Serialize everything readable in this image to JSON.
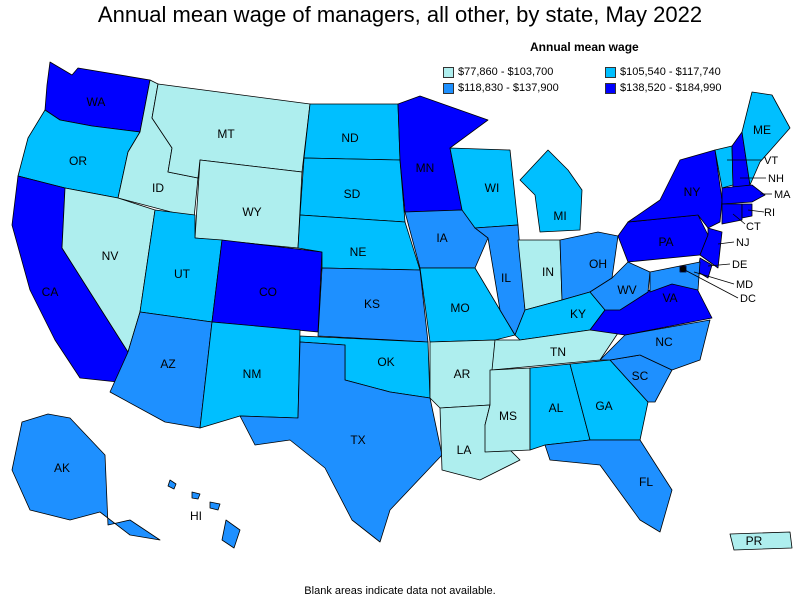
{
  "title": "Annual mean wage of managers, all other, by state, May 2022",
  "legend": {
    "title": "Annual mean wage",
    "items": [
      {
        "label": "$77,860 - $103,700",
        "color": "#aeeeee"
      },
      {
        "label": "$105,540 - $117,740",
        "color": "#00bfff"
      },
      {
        "label": "$118,830 - $137,900",
        "color": "#1e90ff"
      },
      {
        "label": "$138,520 - $184,990",
        "color": "#0000ff"
      }
    ]
  },
  "footnote": "Blank areas indicate data not available.",
  "states": {
    "WA": {
      "label": "WA",
      "bin": 3
    },
    "OR": {
      "label": "OR",
      "bin": 1
    },
    "CA": {
      "label": "CA",
      "bin": 3
    },
    "ID": {
      "label": "ID",
      "bin": 0
    },
    "NV": {
      "label": "NV",
      "bin": 0
    },
    "MT": {
      "label": "MT",
      "bin": 0
    },
    "WY": {
      "label": "WY",
      "bin": 0
    },
    "UT": {
      "label": "UT",
      "bin": 1
    },
    "AZ": {
      "label": "AZ",
      "bin": 2
    },
    "CO": {
      "label": "CO",
      "bin": 3
    },
    "NM": {
      "label": "NM",
      "bin": 1
    },
    "ND": {
      "label": "ND",
      "bin": 1
    },
    "SD": {
      "label": "SD",
      "bin": 1
    },
    "NE": {
      "label": "NE",
      "bin": 1
    },
    "KS": {
      "label": "KS",
      "bin": 2
    },
    "OK": {
      "label": "OK",
      "bin": 1
    },
    "TX": {
      "label": "TX",
      "bin": 2
    },
    "MN": {
      "label": "MN",
      "bin": 3
    },
    "IA": {
      "label": "IA",
      "bin": 2
    },
    "MO": {
      "label": "MO",
      "bin": 1
    },
    "AR": {
      "label": "AR",
      "bin": 0
    },
    "LA": {
      "label": "LA",
      "bin": 0
    },
    "WI": {
      "label": "WI",
      "bin": 1
    },
    "IL": {
      "label": "IL",
      "bin": 2
    },
    "MI": {
      "label": "MI",
      "bin": 1
    },
    "IN": {
      "label": "IN",
      "bin": 0
    },
    "OH": {
      "label": "OH",
      "bin": 2
    },
    "KY": {
      "label": "KY",
      "bin": 1
    },
    "TN": {
      "label": "TN",
      "bin": 0
    },
    "MS": {
      "label": "MS",
      "bin": 0
    },
    "AL": {
      "label": "AL",
      "bin": 1
    },
    "GA": {
      "label": "GA",
      "bin": 1
    },
    "FL": {
      "label": "FL",
      "bin": 2
    },
    "SC": {
      "label": "SC",
      "bin": 2
    },
    "NC": {
      "label": "NC",
      "bin": 2
    },
    "VA": {
      "label": "VA",
      "bin": 3
    },
    "WV": {
      "label": "WV",
      "bin": 2
    },
    "PA": {
      "label": "PA",
      "bin": 3
    },
    "NY": {
      "label": "NY",
      "bin": 3
    },
    "ME": {
      "label": "ME",
      "bin": 1
    },
    "VT": {
      "label": "VT",
      "bin": 1
    },
    "NH": {
      "label": "NH",
      "bin": 3
    },
    "MA": {
      "label": "MA",
      "bin": 3
    },
    "RI": {
      "label": "RI",
      "bin": 3
    },
    "CT": {
      "label": "CT",
      "bin": 3
    },
    "NJ": {
      "label": "NJ",
      "bin": 3
    },
    "DE": {
      "label": "DE",
      "bin": 3
    },
    "MD": {
      "label": "MD",
      "bin": 2
    },
    "DC": {
      "label": "DC",
      "bin": 3
    },
    "AK": {
      "label": "AK",
      "bin": 2
    },
    "HI": {
      "label": "HI",
      "bin": 2
    },
    "PR": {
      "label": "PR",
      "bin": 0
    }
  }
}
